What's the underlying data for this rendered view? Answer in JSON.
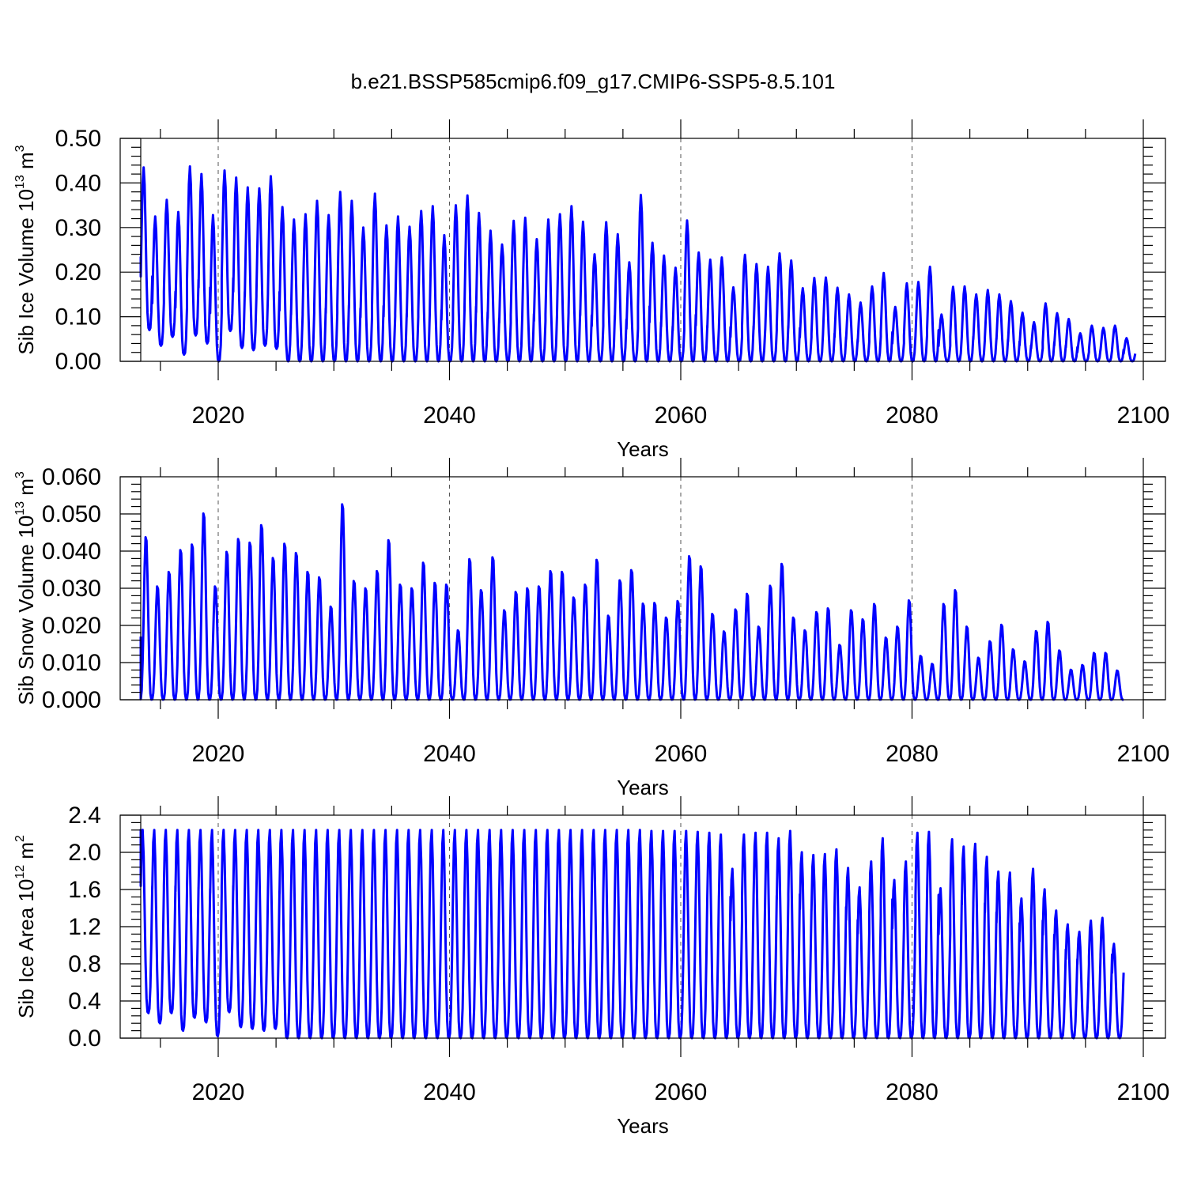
{
  "page_title": "b.e21.BSSP585cmip6.f09_g17.CMIP6-SSP5-8.5.101",
  "colors": {
    "series": "#0000ff",
    "axes": "#000000",
    "grid": "#555555"
  },
  "chart_data": [
    {
      "type": "line",
      "xlabel": "Years",
      "ylabel": {
        "text": "Sib Ice Volume 10",
        "exp": "13",
        "unit": " m",
        "unit_exp": "3"
      },
      "xlim": [
        2013.3,
        2100
      ],
      "ylim": [
        0,
        0.5
      ],
      "x_ticks": [
        "2020",
        "2040",
        "2060",
        "2080",
        "2100"
      ],
      "y_ticks": [
        "0.00",
        "0.10",
        "0.20",
        "0.30",
        "0.40",
        "0.50"
      ],
      "grid_x": [
        2020,
        2040,
        2060,
        2080
      ],
      "series": [
        {
          "start_year": 2013.3,
          "peak_phase": 0.25,
          "peaks": [
            0.435,
            0.325,
            0.362,
            0.335,
            0.437,
            0.42,
            0.328,
            0.428,
            0.412,
            0.39,
            0.388,
            0.415,
            0.346,
            0.318,
            0.33,
            0.36,
            0.328,
            0.38,
            0.36,
            0.3,
            0.376,
            0.305,
            0.325,
            0.302,
            0.337,
            0.348,
            0.283,
            0.35,
            0.372,
            0.333,
            0.293,
            0.262,
            0.315,
            0.322,
            0.274,
            0.318,
            0.33,
            0.348,
            0.313,
            0.24,
            0.312,
            0.285,
            0.222,
            0.373,
            0.266,
            0.237,
            0.21,
            0.316,
            0.244,
            0.228,
            0.233,
            0.166,
            0.239,
            0.218,
            0.212,
            0.242,
            0.226,
            0.164,
            0.187,
            0.188,
            0.165,
            0.15,
            0.132,
            0.168,
            0.198,
            0.122,
            0.175,
            0.178,
            0.212,
            0.105,
            0.167,
            0.168,
            0.15,
            0.16,
            0.15,
            0.135,
            0.109,
            0.088,
            0.13,
            0.108,
            0.095,
            0.063,
            0.08,
            0.075,
            0.08,
            0.052
          ],
          "troughs": [
            0.07,
            0.035,
            0.055,
            0.015,
            0.058,
            0.04,
            0.0,
            0.068,
            0.03,
            0.025,
            0.035,
            0.028,
            0.0,
            0.0,
            0.0,
            0.0,
            0.0,
            0.0,
            0.0,
            0.0,
            0.0,
            0.0,
            0.0,
            0.0,
            0.0,
            0.0,
            0.0,
            0.0,
            0.0,
            0.0,
            0.0,
            0.0,
            0.0,
            0.0,
            0.0,
            0.0,
            0.0,
            0.0,
            0.0,
            0.0,
            0.0,
            0.0,
            0.0,
            0.0,
            0.0,
            0.0,
            0.0,
            0.0,
            0.0,
            0.0,
            0.0,
            0.0,
            0.0,
            0.0,
            0.0,
            0.0,
            0.0,
            0.0,
            0.0,
            0.0,
            0.0,
            0.0,
            0.0,
            0.0,
            0.0,
            0.0,
            0.0,
            0.0,
            0.0,
            0.0,
            0.0,
            0.0,
            0.0,
            0.0,
            0.0,
            0.0,
            0.0,
            0.0,
            0.0,
            0.0,
            0.0,
            0.0,
            0.0,
            0.0,
            0.0,
            0.0
          ],
          "start_value": 0.235
        }
      ]
    },
    {
      "type": "line",
      "xlabel": "Years",
      "ylabel": {
        "text": "Sib Snow Volume 10",
        "exp": "13",
        "unit": " m",
        "unit_exp": "3"
      },
      "xlim": [
        2013.3,
        2100
      ],
      "ylim": [
        0,
        0.06
      ],
      "x_ticks": [
        "2020",
        "2040",
        "2060",
        "2080",
        "2100"
      ],
      "y_ticks": [
        "0.000",
        "0.010",
        "0.020",
        "0.030",
        "0.040",
        "0.050",
        "0.060"
      ],
      "grid_x": [
        2020,
        2040,
        2060,
        2080
      ],
      "series": [
        {
          "start_year": 2013.3,
          "peak_phase": 0.45,
          "peaks": [
            0.0445,
            0.031,
            0.035,
            0.041,
            0.0425,
            0.051,
            0.031,
            0.0405,
            0.044,
            0.043,
            0.0478,
            0.0388,
            0.0427,
            0.0402,
            0.035,
            0.0335,
            0.0255,
            0.0535,
            0.0325,
            0.0305,
            0.0352,
            0.0437,
            0.0315,
            0.0305,
            0.0375,
            0.032,
            0.0315,
            0.019,
            0.0385,
            0.03,
            0.039,
            0.0245,
            0.0295,
            0.0305,
            0.031,
            0.0352,
            0.035,
            0.028,
            0.0315,
            0.0383,
            0.023,
            0.0327,
            0.0355,
            0.0263,
            0.0265,
            0.0225,
            0.027,
            0.0393,
            0.0365,
            0.0235,
            0.0187,
            0.0247,
            0.029,
            0.02,
            0.0312,
            0.0372,
            0.0225,
            0.019,
            0.024,
            0.025,
            0.015,
            0.0245,
            0.022,
            0.0262,
            0.017,
            0.02,
            0.0272,
            0.012,
            0.0098,
            0.0262,
            0.03,
            0.02,
            0.0115,
            0.016,
            0.0205,
            0.0138,
            0.0105,
            0.0188,
            0.0213,
            0.0135,
            0.0082,
            0.0095,
            0.0128,
            0.0128,
            0.008
          ],
          "troughs": [
            0,
            0,
            0,
            0,
            0,
            0,
            0,
            0,
            0,
            0,
            0,
            0,
            0,
            0,
            0,
            0,
            0,
            0,
            0,
            0,
            0,
            0,
            0,
            0,
            0,
            0,
            0,
            0,
            0,
            0,
            0,
            0,
            0,
            0,
            0,
            0,
            0,
            0,
            0,
            0,
            0,
            0,
            0,
            0,
            0,
            0,
            0,
            0,
            0,
            0,
            0,
            0,
            0,
            0,
            0,
            0,
            0,
            0,
            0,
            0,
            0,
            0,
            0,
            0,
            0,
            0,
            0,
            0,
            0,
            0,
            0,
            0,
            0,
            0,
            0,
            0,
            0,
            0,
            0,
            0,
            0,
            0,
            0,
            0,
            0
          ],
          "start_value": 0.017
        }
      ]
    },
    {
      "type": "line",
      "xlabel": "Years",
      "ylabel": {
        "text": "Sib Ice Area 10",
        "exp": "12",
        "unit": " m",
        "unit_exp": "2"
      },
      "xlim": [
        2013.3,
        2100
      ],
      "ylim": [
        0,
        2.4
      ],
      "x_ticks": [
        "2020",
        "2040",
        "2060",
        "2080",
        "2100"
      ],
      "y_ticks": [
        "0.0",
        "0.4",
        "0.8",
        "1.2",
        "1.6",
        "2.0",
        "2.4"
      ],
      "grid_x": [
        2020,
        2040,
        2060,
        2080
      ],
      "series": [
        {
          "start_year": 2013.3,
          "peak_phase": 0.15,
          "peaks": [
            2.25,
            2.25,
            2.25,
            2.25,
            2.25,
            2.25,
            2.25,
            2.25,
            2.25,
            2.25,
            2.25,
            2.25,
            2.25,
            2.25,
            2.25,
            2.25,
            2.25,
            2.25,
            2.25,
            2.25,
            2.25,
            2.25,
            2.25,
            2.25,
            2.25,
            2.25,
            2.25,
            2.25,
            2.25,
            2.25,
            2.25,
            2.25,
            2.25,
            2.25,
            2.25,
            2.25,
            2.25,
            2.25,
            2.25,
            2.25,
            2.25,
            2.25,
            2.25,
            2.25,
            2.24,
            2.24,
            2.24,
            2.24,
            2.23,
            2.22,
            2.2,
            1.83,
            2.2,
            2.22,
            2.22,
            2.16,
            2.24,
            2.01,
            1.98,
            1.99,
            2.04,
            1.84,
            1.63,
            1.91,
            2.16,
            1.71,
            1.91,
            2.22,
            2.23,
            1.62,
            2.15,
            2.07,
            2.1,
            1.96,
            1.8,
            1.79,
            1.51,
            1.83,
            1.61,
            1.38,
            1.23,
            1.15,
            1.27,
            1.3,
            1.02
          ],
          "troughs": [
            0.27,
            0.16,
            0.27,
            0.08,
            0.22,
            0.17,
            0.02,
            0.28,
            0.12,
            0.1,
            0.08,
            0.1,
            0,
            0,
            0,
            0,
            0,
            0,
            0,
            0,
            0,
            0,
            0,
            0,
            0,
            0,
            0,
            0,
            0,
            0,
            0,
            0,
            0,
            0,
            0,
            0,
            0,
            0,
            0,
            0,
            0,
            0,
            0,
            0,
            0,
            0,
            0,
            0,
            0,
            0,
            0,
            0,
            0,
            0,
            0,
            0,
            0,
            0,
            0,
            0,
            0,
            0,
            0,
            0,
            0,
            0,
            0,
            0,
            0,
            0,
            0,
            0,
            0,
            0,
            0,
            0,
            0,
            0,
            0,
            0,
            0,
            0,
            0,
            0,
            0
          ],
          "start_value": 2.25
        }
      ]
    }
  ]
}
